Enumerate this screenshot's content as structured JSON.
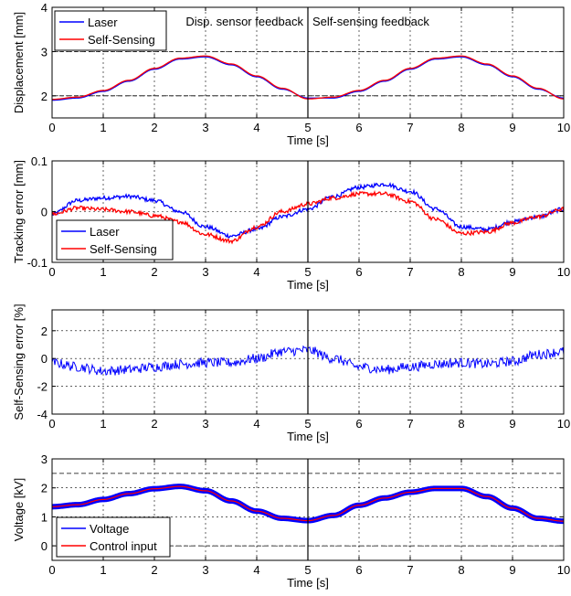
{
  "chart_data": [
    {
      "type": "line",
      "ylabel": "Displacement [mm]",
      "xlabel": "Time [s]",
      "xlim": [
        0,
        10
      ],
      "ylim": [
        1.5,
        4
      ],
      "xticks": [
        "0",
        "1",
        "2",
        "3",
        "4",
        "5",
        "6",
        "7",
        "8",
        "9",
        "10"
      ],
      "yticks": [
        2,
        3,
        4
      ],
      "ytick_labels": [
        "2",
        "3",
        "4"
      ],
      "grid": true,
      "legend": "top-left",
      "annotations": [
        "Disp. sensor feedback",
        "Self-sensing feedback"
      ],
      "divider_x": 5,
      "reference_y": [
        3,
        2
      ],
      "series": [
        {
          "name": "Laser",
          "color": "#0000ff",
          "x": [
            0,
            0.5,
            1,
            1.5,
            2,
            2.5,
            3,
            3.5,
            4,
            4.5,
            5,
            5.5,
            6,
            6.5,
            7,
            7.5,
            8,
            8.5,
            9,
            9.5,
            10
          ],
          "values": [
            1.9,
            1.95,
            2.1,
            2.33,
            2.6,
            2.83,
            2.88,
            2.7,
            2.43,
            2.15,
            1.95,
            1.95,
            2.1,
            2.33,
            2.6,
            2.83,
            2.88,
            2.7,
            2.43,
            2.15,
            1.95
          ]
        },
        {
          "name": "Self-Sensing",
          "color": "#ff0000",
          "x": [
            0,
            0.5,
            1,
            1.5,
            2,
            2.5,
            3,
            3.5,
            4,
            4.5,
            5,
            5.5,
            6,
            6.5,
            7,
            7.5,
            8,
            8.5,
            9,
            9.5,
            10
          ],
          "values": [
            1.92,
            1.97,
            2.12,
            2.35,
            2.62,
            2.85,
            2.9,
            2.72,
            2.45,
            2.17,
            1.93,
            1.97,
            2.12,
            2.35,
            2.62,
            2.85,
            2.9,
            2.72,
            2.45,
            2.17,
            1.93
          ]
        }
      ]
    },
    {
      "type": "line",
      "ylabel": "Tracking error [mm]",
      "xlabel": "Time [s]",
      "xlim": [
        0,
        10
      ],
      "ylim": [
        -0.1,
        0.1
      ],
      "xticks": [
        "0",
        "1",
        "2",
        "3",
        "4",
        "5",
        "6",
        "7",
        "8",
        "9",
        "10"
      ],
      "yticks": [
        -0.1,
        0,
        0.1
      ],
      "ytick_labels": [
        "-0.1",
        "0",
        "0.1"
      ],
      "grid": true,
      "legend": "bottom-left",
      "divider_x": 5,
      "series": [
        {
          "name": "Laser",
          "color": "#0000ff",
          "x": [
            0,
            0.5,
            1,
            1.5,
            2,
            2.5,
            3,
            3.5,
            4,
            4.5,
            5,
            5.5,
            6,
            6.5,
            7,
            7.5,
            8,
            8.5,
            9,
            9.5,
            10
          ],
          "values": [
            -0.005,
            0.022,
            0.027,
            0.03,
            0.022,
            0.0,
            -0.03,
            -0.048,
            -0.035,
            -0.01,
            0.005,
            0.03,
            0.048,
            0.054,
            0.04,
            0.005,
            -0.03,
            -0.035,
            -0.02,
            -0.01,
            0.005
          ]
        },
        {
          "name": "Self-Sensing",
          "color": "#ff0000",
          "x": [
            0,
            0.5,
            1,
            1.5,
            2,
            2.5,
            3,
            3.5,
            4,
            4.5,
            5,
            5.5,
            6,
            6.5,
            7,
            7.5,
            8,
            8.5,
            9,
            9.5,
            10
          ],
          "values": [
            -0.005,
            0.007,
            0.004,
            0.0,
            -0.008,
            -0.02,
            -0.045,
            -0.058,
            -0.03,
            0.0,
            0.015,
            0.027,
            0.035,
            0.035,
            0.02,
            -0.015,
            -0.043,
            -0.04,
            -0.022,
            -0.01,
            0.005
          ]
        }
      ]
    },
    {
      "type": "line",
      "ylabel": "Self-Sensing error [%]",
      "xlabel": "Time [s]",
      "xlim": [
        0,
        10
      ],
      "ylim": [
        -4,
        3.5
      ],
      "xticks": [
        "0",
        "1",
        "2",
        "3",
        "4",
        "5",
        "6",
        "7",
        "8",
        "9",
        "10"
      ],
      "yticks": [
        -4,
        -2,
        0,
        2
      ],
      "ytick_labels": [
        "-4",
        "-2",
        "0",
        "2"
      ],
      "grid": true,
      "divider_x": 5,
      "series": [
        {
          "name": "Self-Sensing error",
          "color": "#0000ff",
          "x": [
            0,
            0.5,
            1,
            1.5,
            2,
            2.5,
            3,
            3.5,
            4,
            4.5,
            5,
            5.5,
            6,
            6.5,
            7,
            7.5,
            8,
            8.5,
            9,
            9.5,
            10
          ],
          "values": [
            -0.3,
            -0.6,
            -0.9,
            -0.8,
            -0.6,
            -0.4,
            -0.3,
            -0.3,
            0.0,
            0.5,
            0.6,
            0.0,
            -0.6,
            -0.8,
            -0.6,
            -0.4,
            -0.3,
            -0.4,
            -0.2,
            0.3,
            0.5
          ]
        }
      ]
    },
    {
      "type": "line",
      "ylabel": "Voltage [kV]",
      "xlabel": "Time [s]",
      "xlim": [
        0,
        10
      ],
      "ylim": [
        -0.5,
        3
      ],
      "xticks": [
        "0",
        "1",
        "2",
        "3",
        "4",
        "5",
        "6",
        "7",
        "8",
        "9",
        "10"
      ],
      "yticks": [
        0,
        1,
        2,
        3
      ],
      "ytick_labels": [
        "0",
        "1",
        "2",
        "3"
      ],
      "grid": true,
      "legend": "bottom-left",
      "divider_x": 5,
      "reference_y": [
        0,
        2.5
      ],
      "series": [
        {
          "name": "Voltage",
          "color": "#0000ff",
          "x": [
            0,
            0.5,
            1,
            1.5,
            2,
            2.5,
            3,
            3.5,
            4,
            4.5,
            5,
            5.5,
            6,
            6.5,
            7,
            7.5,
            8,
            8.5,
            9,
            9.5,
            10
          ],
          "values": [
            1.35,
            1.42,
            1.6,
            1.8,
            1.97,
            2.05,
            1.9,
            1.55,
            1.2,
            0.95,
            0.87,
            1.05,
            1.4,
            1.65,
            1.85,
            1.98,
            1.98,
            1.7,
            1.3,
            0.95,
            0.85
          ]
        },
        {
          "name": "Control input",
          "color": "#ff0000",
          "x": [
            0,
            0.5,
            1,
            1.5,
            2,
            2.5,
            3,
            3.5,
            4,
            4.5,
            5,
            5.5,
            6,
            6.5,
            7,
            7.5,
            8,
            8.5,
            9,
            9.5,
            10
          ],
          "values": [
            1.35,
            1.42,
            1.6,
            1.8,
            1.97,
            2.05,
            1.9,
            1.55,
            1.2,
            0.95,
            0.87,
            1.05,
            1.4,
            1.65,
            1.85,
            1.98,
            1.98,
            1.7,
            1.3,
            0.95,
            0.85
          ]
        }
      ]
    }
  ]
}
